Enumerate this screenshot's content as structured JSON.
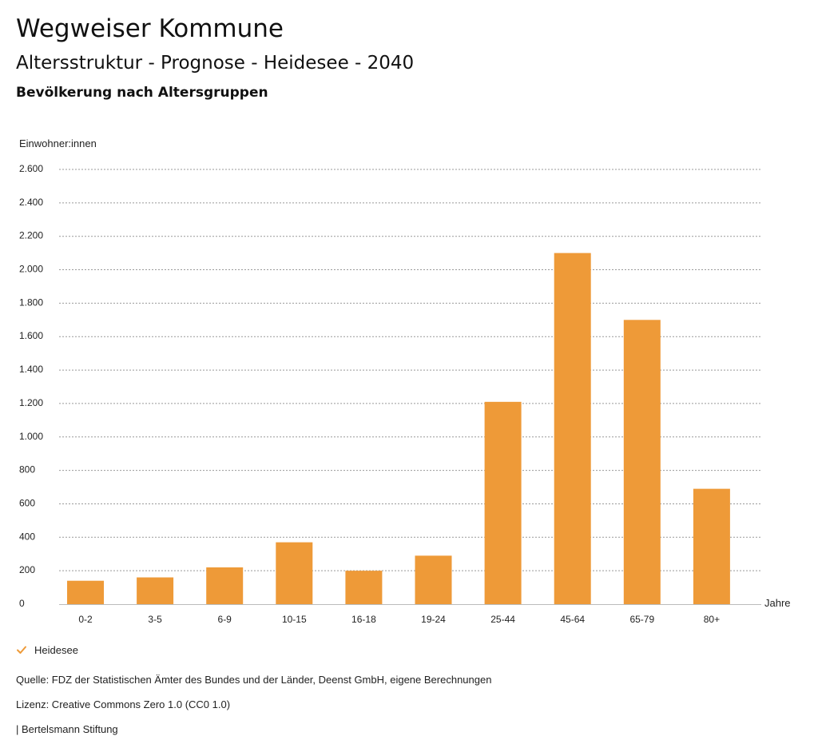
{
  "header": {
    "title": "Wegweiser Kommune",
    "subtitle": "Altersstruktur - Prognose - Heidesee - 2040",
    "chart_heading": "Bevölkerung nach Altersgruppen"
  },
  "colors": {
    "bar": "#EE9A38",
    "grid": "#999999",
    "text": "#111111"
  },
  "chart_data": {
    "type": "bar",
    "title": "Bevölkerung nach Altersgruppen",
    "ylabel": "Einwohner:innen",
    "xlabel": "Jahre",
    "ylim": [
      0,
      2600
    ],
    "yticks": [
      0,
      200,
      400,
      600,
      800,
      1000,
      1200,
      1400,
      1600,
      1800,
      2000,
      2200,
      2400,
      2600
    ],
    "ytick_labels": [
      "0",
      "200",
      "400",
      "600",
      "800",
      "1.000",
      "1.200",
      "1.400",
      "1.600",
      "1.800",
      "2.000",
      "2.200",
      "2.400",
      "2.600"
    ],
    "categories": [
      "0-2",
      "3-5",
      "6-9",
      "10-15",
      "16-18",
      "19-24",
      "25-44",
      "45-64",
      "65-79",
      "80+"
    ],
    "series": [
      {
        "name": "Heidesee",
        "values": [
          140,
          160,
          220,
          370,
          200,
          290,
          1210,
          2100,
          1700,
          690
        ]
      }
    ],
    "grid": true,
    "legend_position": "bottom-left"
  },
  "legend": {
    "items": [
      {
        "label": "Heidesee",
        "icon": "check-icon"
      }
    ]
  },
  "footer": {
    "source": "Quelle: FDZ der Statistischen Ämter des Bundes und der Länder, Deenst GmbH, eigene Berechnungen",
    "license": "Lizenz: Creative Commons Zero 1.0 (CC0 1.0)",
    "brand": "| Bertelsmann Stiftung"
  }
}
